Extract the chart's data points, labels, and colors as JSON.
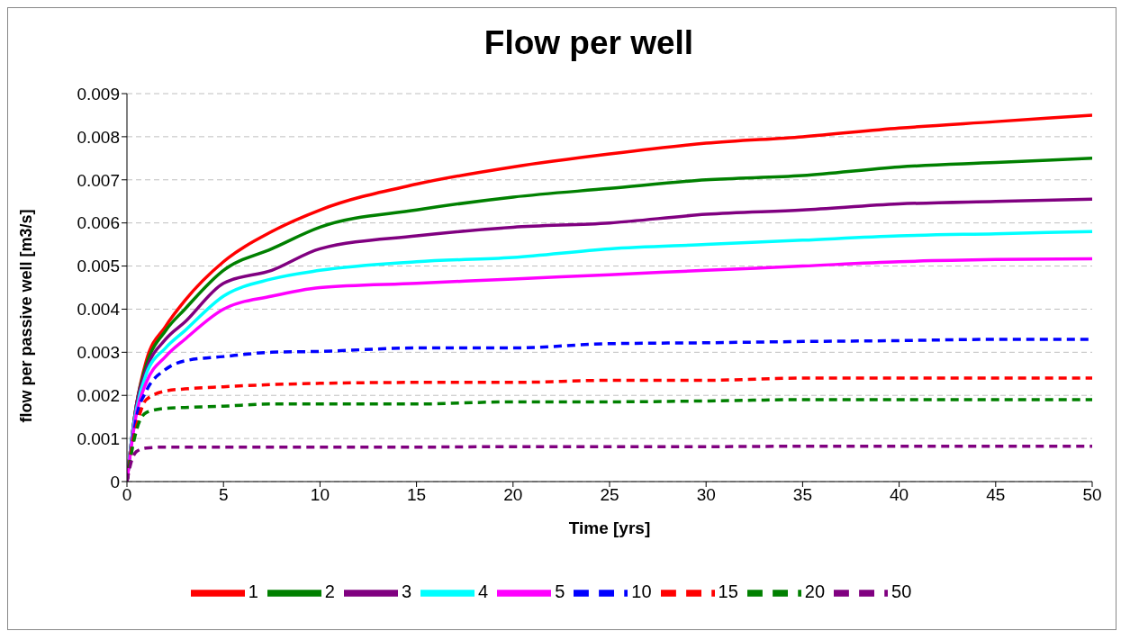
{
  "chart_data": {
    "type": "line",
    "title": "Flow per well",
    "xlabel": "Time [yrs]",
    "ylabel": "flow per passive well [m3/s]",
    "x": [
      0,
      0.25,
      0.5,
      1,
      2,
      3,
      5,
      7.5,
      10,
      15,
      20,
      25,
      30,
      35,
      40,
      45,
      50
    ],
    "series": [
      {
        "name": "1",
        "color": "#ff0000",
        "line_style": "solid",
        "values": [
          0,
          0.001,
          0.0018,
          0.0028,
          0.0036,
          0.0042,
          0.0051,
          0.0058,
          0.0063,
          0.0069,
          0.0073,
          0.0076,
          0.00785,
          0.008,
          0.0082,
          0.00835,
          0.0085
        ]
      },
      {
        "name": "2",
        "color": "#008000",
        "line_style": "solid",
        "values": [
          0,
          0.001,
          0.0018,
          0.0027,
          0.0035,
          0.004,
          0.0049,
          0.0054,
          0.0059,
          0.0063,
          0.0066,
          0.0068,
          0.007,
          0.0071,
          0.0073,
          0.0074,
          0.0075
        ]
      },
      {
        "name": "3",
        "color": "#800080",
        "line_style": "solid",
        "values": [
          0,
          0.001,
          0.0018,
          0.0026,
          0.0033,
          0.0037,
          0.0046,
          0.0049,
          0.0054,
          0.0057,
          0.0059,
          0.006,
          0.0062,
          0.0063,
          0.00644,
          0.0065,
          0.00655
        ]
      },
      {
        "name": "4",
        "color": "#00ffff",
        "line_style": "solid",
        "values": [
          0,
          0.001,
          0.0017,
          0.0025,
          0.0031,
          0.0035,
          0.0043,
          0.0047,
          0.0049,
          0.0051,
          0.0052,
          0.0054,
          0.0055,
          0.0056,
          0.0057,
          0.00575,
          0.0058
        ]
      },
      {
        "name": "5",
        "color": "#ff00ff",
        "line_style": "solid",
        "values": [
          0,
          0.0009,
          0.0016,
          0.0023,
          0.0029,
          0.0033,
          0.004,
          0.0043,
          0.0045,
          0.0046,
          0.0047,
          0.0048,
          0.0049,
          0.005,
          0.0051,
          0.00515,
          0.00517
        ]
      },
      {
        "name": "10",
        "color": "#0000ff",
        "line_style": "dashed",
        "values": [
          0,
          0.0008,
          0.0015,
          0.0021,
          0.0026,
          0.0028,
          0.0029,
          0.003,
          0.00302,
          0.0031,
          0.0031,
          0.0032,
          0.00322,
          0.00325,
          0.00327,
          0.0033,
          0.0033
        ]
      },
      {
        "name": "15",
        "color": "#ff0000",
        "line_style": "dashed",
        "values": [
          0,
          0.0008,
          0.0013,
          0.0019,
          0.0021,
          0.00215,
          0.0022,
          0.00225,
          0.00228,
          0.0023,
          0.0023,
          0.00235,
          0.00235,
          0.0024,
          0.0024,
          0.0024,
          0.0024
        ]
      },
      {
        "name": "20",
        "color": "#008000",
        "line_style": "dashed",
        "values": [
          0,
          0.0007,
          0.0012,
          0.0016,
          0.0017,
          0.00172,
          0.00175,
          0.0018,
          0.0018,
          0.0018,
          0.00185,
          0.00185,
          0.00187,
          0.0019,
          0.0019,
          0.0019,
          0.0019
        ]
      },
      {
        "name": "50",
        "color": "#800080",
        "line_style": "dashed",
        "values": [
          0,
          0.0005,
          0.0007,
          0.00078,
          0.0008,
          0.0008,
          0.0008,
          0.0008,
          0.0008,
          0.0008,
          0.00081,
          0.00081,
          0.00081,
          0.00082,
          0.00082,
          0.00082,
          0.00082
        ]
      }
    ],
    "xlim": [
      0,
      50
    ],
    "xticks": [
      0,
      5,
      10,
      15,
      20,
      25,
      30,
      35,
      40,
      45,
      50
    ],
    "ylim": [
      0,
      0.009
    ],
    "yticks": [
      0,
      0.001,
      0.002,
      0.003,
      0.004,
      0.005,
      0.006,
      0.007,
      0.008,
      0.009
    ],
    "grid": "y",
    "legend": "bottom",
    "marker": "none"
  }
}
